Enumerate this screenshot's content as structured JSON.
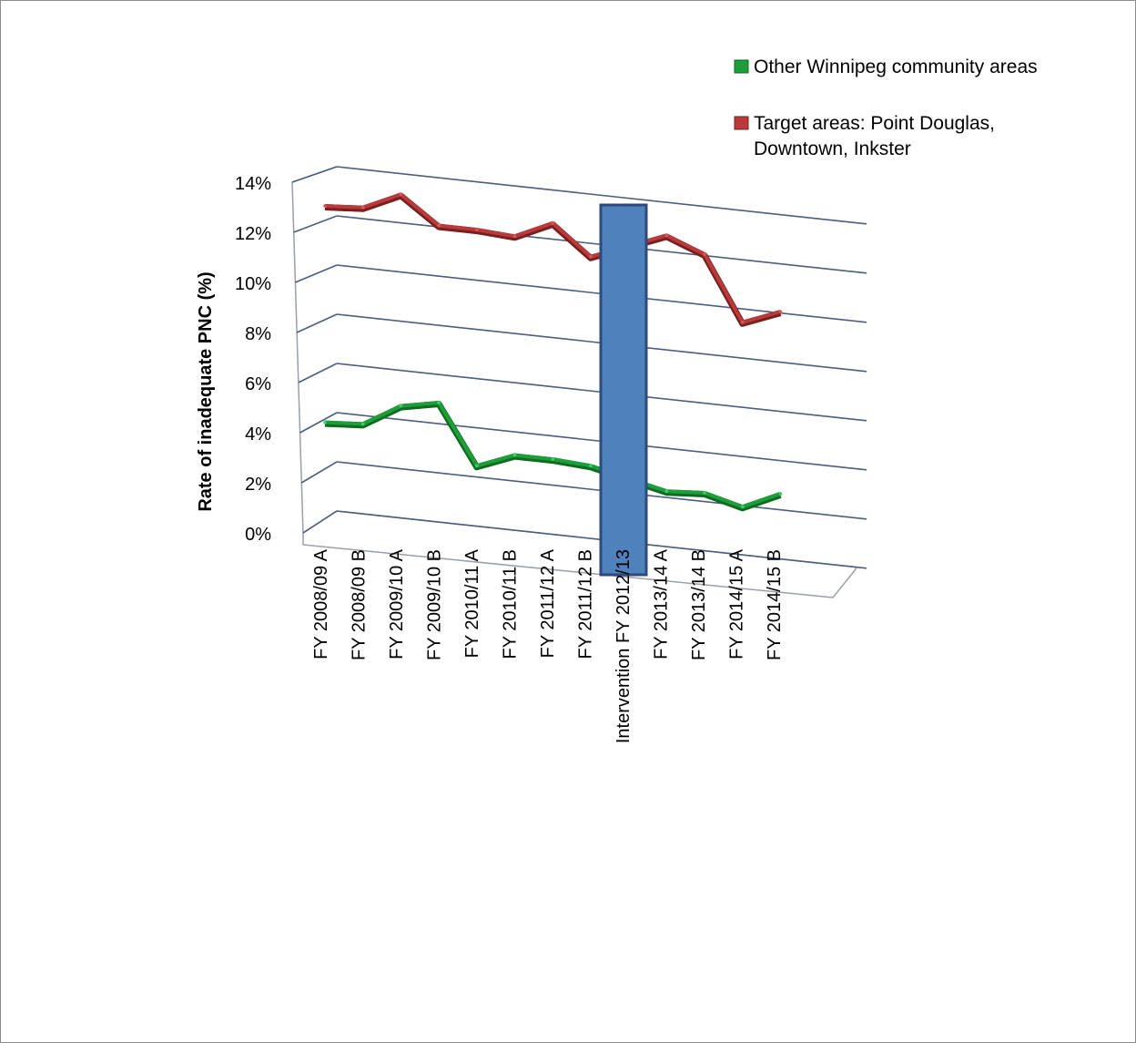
{
  "chart_data": {
    "type": "line",
    "title": "",
    "ylabel": "Rate of inadequate PNC (%)",
    "xlabel": "",
    "ylim": [
      0,
      14
    ],
    "yticks": [
      0,
      2,
      4,
      6,
      8,
      10,
      12,
      14
    ],
    "ytick_labels": [
      "0%",
      "2%",
      "4%",
      "6%",
      "8%",
      "10%",
      "12%",
      "14%"
    ],
    "grid": true,
    "legend_position": "top-right",
    "categories": [
      "FY 2008/09 A",
      "FY 2008/09 B",
      "FY 2009/10 A",
      "FY 2009/10 B",
      "FY 2010/11 A",
      "FY 2010/11 B",
      "FY 2011/12 A",
      "FY 2011/12 B",
      "Intervention FY 2012/13",
      "FY 2013/14 A",
      "FY 2013/14 B",
      "FY 2014/15 A",
      "FY 2014/15 B"
    ],
    "series": [
      {
        "name": "Other Winnipeg community areas",
        "color": "#1e9e3a",
        "values": [
          3.5,
          3.6,
          4.5,
          4.8,
          2.4,
          3.0,
          3.0,
          2.9,
          null,
          2.2,
          2.3,
          1.9,
          2.6
        ]
      },
      {
        "name": "Target areas: Point Douglas, Downtown, Inkster",
        "legend_lines": [
          "Target areas: Point Douglas,",
          "Downtown, Inkster"
        ],
        "color": "#b83a3a",
        "values": [
          12.3,
          12.4,
          13.1,
          12.0,
          12.0,
          11.9,
          12.6,
          11.4,
          null,
          12.6,
          12.0,
          9.4,
          10.0
        ]
      }
    ],
    "intervention_marker": {
      "category": "Intervention FY 2012/13",
      "color": "#4f81bd",
      "border_color": "#2c4a7c"
    }
  }
}
